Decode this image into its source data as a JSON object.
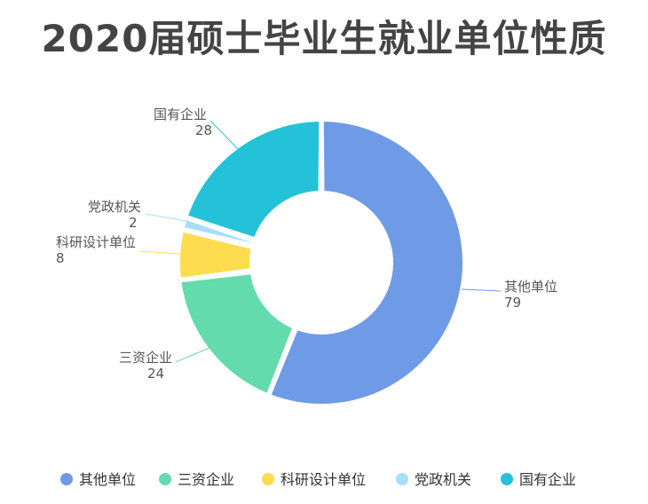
{
  "chart_data": {
    "type": "pie",
    "title": "2020届硕士毕业生就业单位性质",
    "categories": [
      "其他单位",
      "三资企业",
      "科研设计单位",
      "党政机关",
      "国有企业"
    ],
    "values": [
      79,
      24,
      8,
      2,
      28
    ],
    "colors": [
      "#6f9ae6",
      "#64dbad",
      "#fddc4f",
      "#a8dff8",
      "#24c2d9"
    ],
    "legend_position": "bottom"
  }
}
